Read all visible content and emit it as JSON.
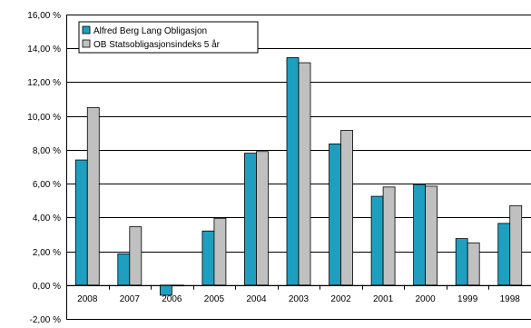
{
  "chart_data": {
    "type": "bar",
    "categories": [
      "2008",
      "2007",
      "2006",
      "2005",
      "2004",
      "2003",
      "2002",
      "2001",
      "2000",
      "1999",
      "1998"
    ],
    "series": [
      {
        "name": "Alfred Berg Lang Obligasjon",
        "color": "#1f9fbf",
        "values": [
          7.4,
          1.85,
          -0.6,
          3.2,
          7.8,
          13.45,
          8.35,
          5.25,
          5.95,
          2.75,
          3.65
        ]
      },
      {
        "name": "OB Statsobligasjonsindeks 5 år",
        "color": "#c0c0c0",
        "values": [
          10.5,
          3.45,
          -0.05,
          3.95,
          7.9,
          13.15,
          9.15,
          5.8,
          5.85,
          2.5,
          4.7
        ]
      }
    ],
    "ylim": [
      -2,
      16
    ],
    "yticks": [
      "-2,00 %",
      "0,00 %",
      "2,00 %",
      "4,00 %",
      "6,00 %",
      "8,00 %",
      "10,00 %",
      "12,00 %",
      "14,00 %",
      "16,00 %"
    ],
    "grid": true,
    "legend_position": "top-left"
  }
}
